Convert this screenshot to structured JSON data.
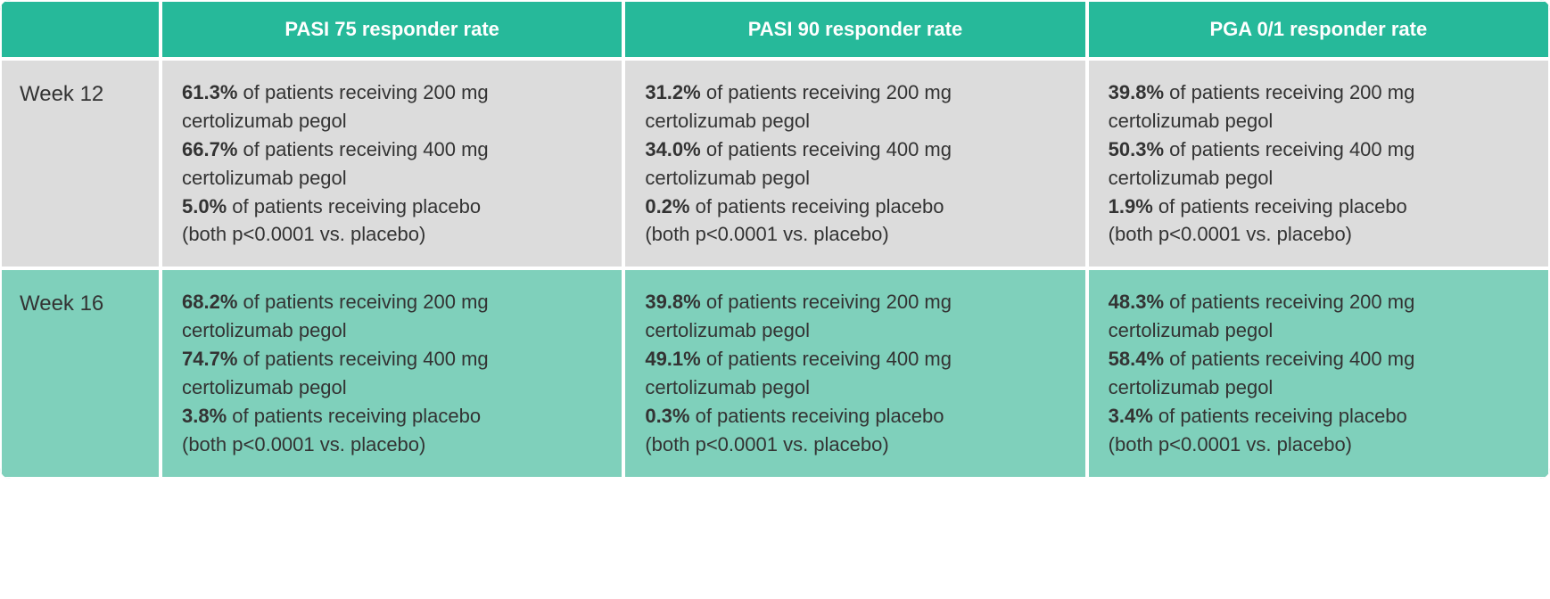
{
  "colors": {
    "header_bg": "#26b99a",
    "header_text": "#ffffff",
    "row_bg_1": "#dcdcdc",
    "row_bg_2": "#7fd0bb",
    "text": "#333333",
    "border": "#ffffff"
  },
  "font_sizes": {
    "header": 22,
    "row_label": 24,
    "cell": 22
  },
  "columns": [
    "PASI 75 responder rate",
    "PASI 90 responder rate",
    "PGA 0/1 responder rate"
  ],
  "rows": [
    {
      "label": "Week 12",
      "cells": [
        {
          "pct_200": "61.3%",
          "pct_400": "66.7%",
          "pct_placebo": "5.0%",
          "suffix_200": " of patients receiving 200 mg certolizumab pegol",
          "suffix_400": " of patients receiving 400 mg certolizumab pegol",
          "suffix_placebo": " of patients receiving placebo",
          "pvalue": "(both p<0.0001 vs. placebo)"
        },
        {
          "pct_200": "31.2%",
          "pct_400": "34.0%",
          "pct_placebo": "0.2%",
          "suffix_200": " of patients receiving 200 mg certolizumab pegol",
          "suffix_400": " of patients receiving 400 mg certolizumab pegol",
          "suffix_placebo": " of patients receiving placebo",
          "pvalue": "(both p<0.0001 vs. placebo)"
        },
        {
          "pct_200": "39.8%",
          "pct_400": "50.3%",
          "pct_placebo": "1.9%",
          "suffix_200": " of patients receiving 200 mg certolizumab pegol",
          "suffix_400": " of patients receiving 400 mg certolizumab pegol",
          "suffix_placebo": " of patients receiving placebo",
          "pvalue": "(both p<0.0001 vs. placebo)"
        }
      ]
    },
    {
      "label": "Week 16",
      "cells": [
        {
          "pct_200": "68.2%",
          "pct_400": "74.7%",
          "pct_placebo": "3.8%",
          "suffix_200": " of patients receiving 200 mg certolizumab pegol",
          "suffix_400": " of patients receiving 400 mg certolizumab pegol",
          "suffix_placebo": " of patients receiving placebo",
          "pvalue": "(both p<0.0001 vs. placebo)"
        },
        {
          "pct_200": "39.8%",
          "pct_400": "49.1%",
          "pct_placebo": "0.3%",
          "suffix_200": " of patients receiving 200 mg certolizumab pegol",
          "suffix_400": " of patients receiving 400 mg certolizumab pegol",
          "suffix_placebo": " of patients receiving placebo",
          "pvalue": "(both p<0.0001 vs. placebo)"
        },
        {
          "pct_200": "48.3%",
          "pct_400": "58.4%",
          "pct_placebo": "3.4%",
          "suffix_200": " of patients receiving 200 mg certolizumab pegol",
          "suffix_400": " of patients receiving 400 mg certolizumab pegol",
          "suffix_placebo": " of patients receiving placebo",
          "pvalue": "(both p<0.0001 vs. placebo)"
        }
      ]
    }
  ]
}
